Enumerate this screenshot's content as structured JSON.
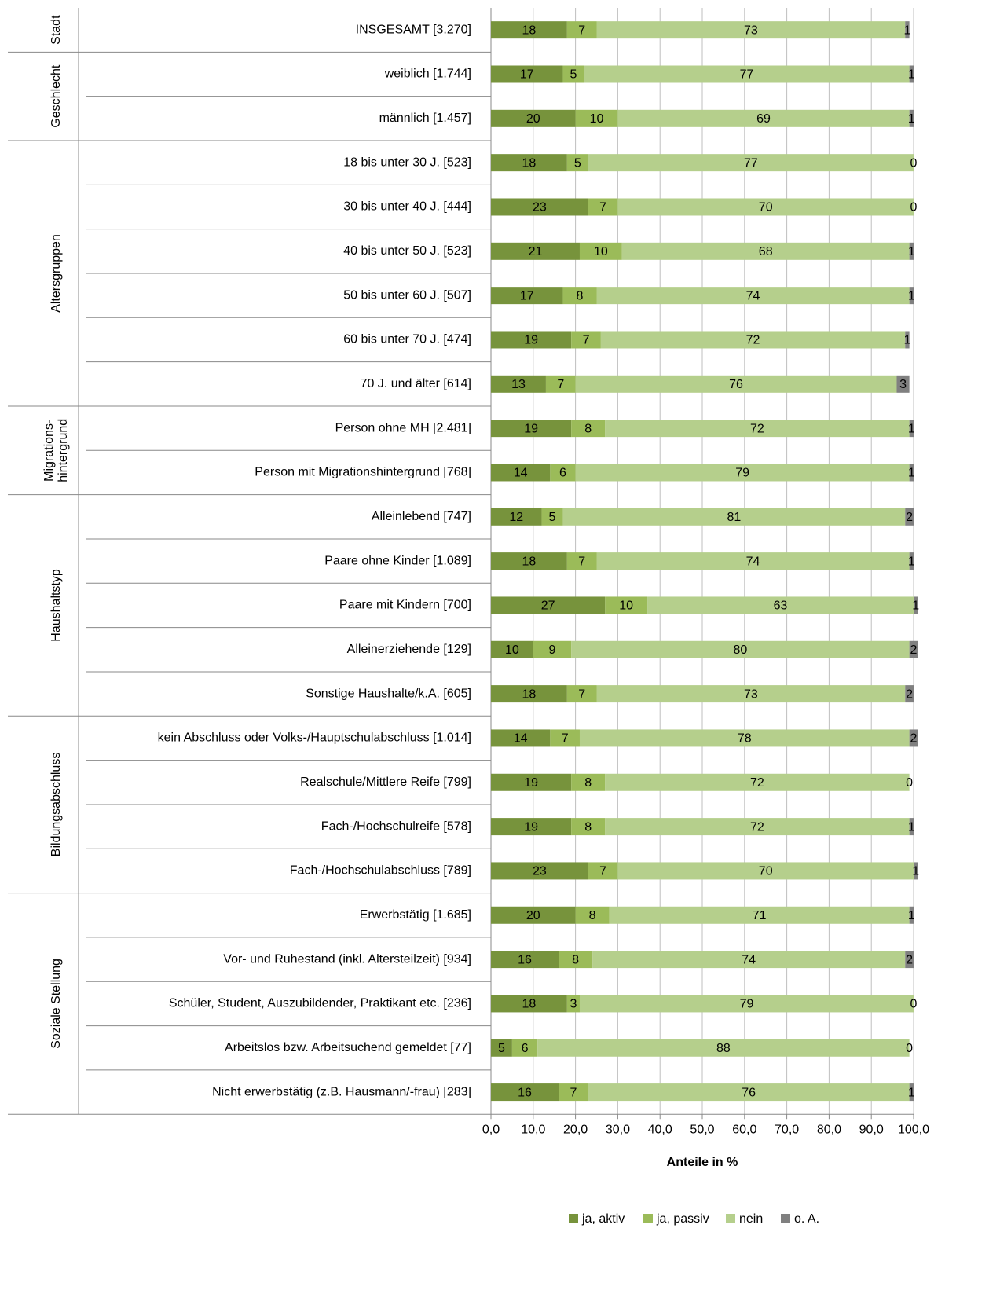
{
  "chart_data": {
    "type": "stacked-barh",
    "groups": [
      {
        "name": "Stadt",
        "categories": [
          "INSGESAMT [3.270]"
        ]
      },
      {
        "name": "Geschlecht",
        "categories": [
          "weiblich [1.744]",
          "männlich [1.457]"
        ]
      },
      {
        "name": "Altersgruppen",
        "categories": [
          "18 bis unter 30 J. [523]",
          "30 bis unter 40 J. [444]",
          "40 bis unter 50 J. [523]",
          "50 bis unter 60 J. [507]",
          "60 bis unter 70 J. [474]",
          "70 J. und älter [614]"
        ]
      },
      {
        "name": "Migrations-\nhintergrund",
        "categories": [
          "Person ohne MH [2.481]",
          "Person mit Migrationshintergrund  [768]"
        ]
      },
      {
        "name": "Haushaltstyp",
        "categories": [
          "Alleinlebend  [747]",
          "Paare ohne Kinder [1.089]",
          "Paare mit Kindern [700]",
          "Alleinerziehende  [129]",
          "Sonstige  Haushalte/k.A.  [605]"
        ]
      },
      {
        "name": "Bildungsabschluss",
        "categories": [
          "kein  Abschluss  oder Volks-/Hauptschulabschluss  [1.014]",
          "Realschule/Mittlere  Reife [799]",
          "Fach-/Hochschulreife  [578]",
          "Fach-/Hochschulabschluss  [789]"
        ]
      },
      {
        "name": "Soziale  Stellung",
        "categories": [
          "Erwerbstätig [1.685]",
          "Vor- und Ruhestand  (inkl.  Altersteilzeit) [934]",
          "Schüler,  Student,  Auszubildender,  Praktikant  etc. [236]",
          "Arbeitslos  bzw.  Arbeitsuchend  gemeldet  [77]",
          "Nicht  erwerbstätig  (z.B. Hausmann/-frau) [283]"
        ]
      }
    ],
    "series": [
      {
        "name": "ja, aktiv",
        "color": "#77933c",
        "values": [
          18,
          17,
          20,
          18,
          23,
          21,
          17,
          19,
          13,
          19,
          14,
          12,
          18,
          27,
          10,
          18,
          14,
          19,
          19,
          23,
          20,
          16,
          18,
          5,
          16
        ]
      },
      {
        "name": "ja, passiv",
        "color": "#9bbb59",
        "values": [
          7,
          5,
          10,
          5,
          7,
          10,
          8,
          7,
          7,
          8,
          6,
          5,
          7,
          10,
          9,
          7,
          7,
          8,
          8,
          7,
          8,
          8,
          3,
          6,
          7
        ]
      },
      {
        "name": "nein",
        "color": "#b5cf8c",
        "values": [
          73,
          77,
          69,
          77,
          70,
          68,
          74,
          72,
          76,
          72,
          79,
          81,
          74,
          63,
          80,
          73,
          78,
          72,
          72,
          70,
          71,
          74,
          79,
          88,
          76
        ]
      },
      {
        "name": "o. A.",
        "color": "#808080",
        "values": [
          1,
          1,
          1,
          0,
          0,
          1,
          1,
          1,
          3,
          1,
          1,
          2,
          1,
          1,
          2,
          2,
          2,
          0,
          1,
          1,
          1,
          2,
          0,
          0,
          1
        ]
      }
    ],
    "xlabel": "Anteile in %",
    "xlim": [
      0,
      100
    ],
    "xticks": [
      {
        "value": 0,
        "label": "0,0"
      },
      {
        "value": 10,
        "label": "10,0"
      },
      {
        "value": 20,
        "label": "20,0"
      },
      {
        "value": 30,
        "label": "30,0"
      },
      {
        "value": 40,
        "label": "40,0"
      },
      {
        "value": 50,
        "label": "50,0"
      },
      {
        "value": 60,
        "label": "60,0"
      },
      {
        "value": 70,
        "label": "70,0"
      },
      {
        "value": 80,
        "label": "80,0"
      },
      {
        "value": 90,
        "label": "90,0"
      },
      {
        "value": 100,
        "label": "100,0"
      }
    ],
    "grid": true,
    "legend": "bottom"
  }
}
